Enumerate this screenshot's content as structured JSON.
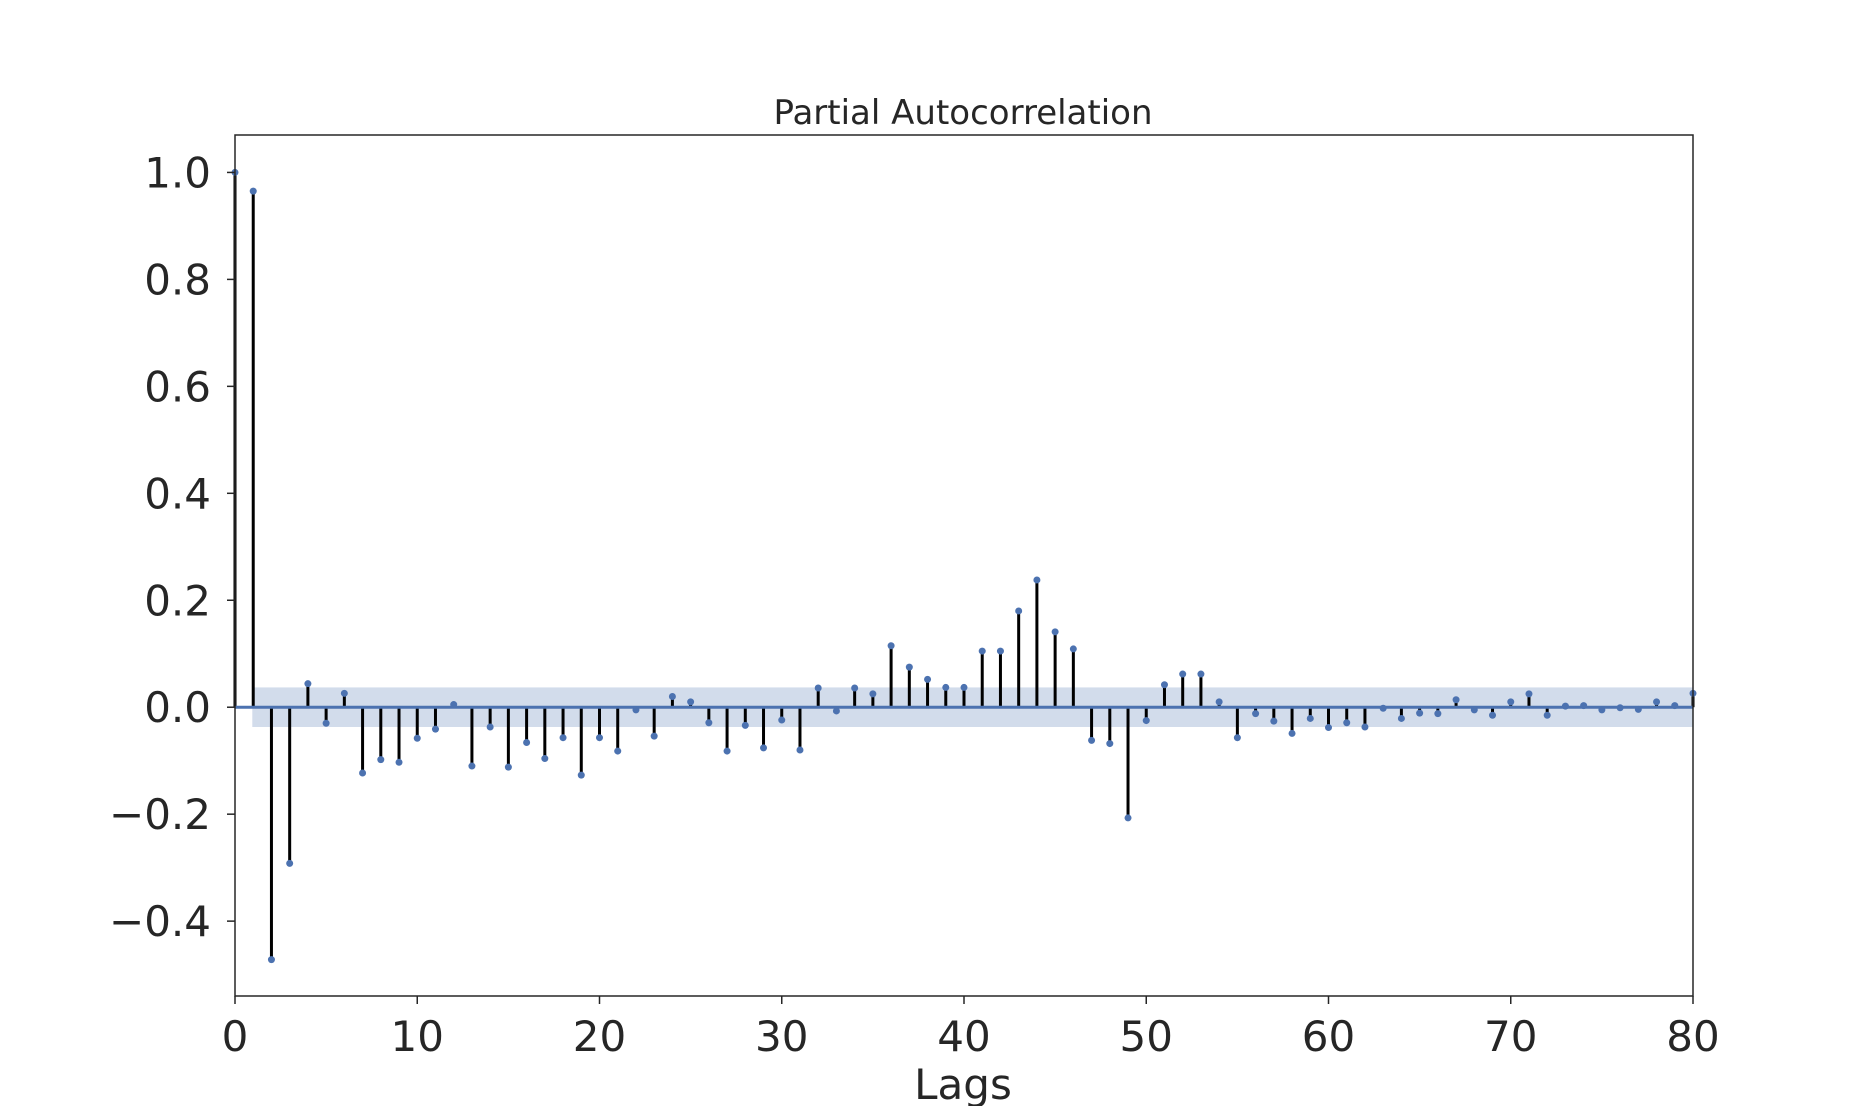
{
  "chart_data": {
    "type": "stem",
    "title": "Partial Autocorrelation",
    "xlabel": "Lags",
    "ylabel": "",
    "xlim": [
      0,
      80
    ],
    "ylim": [
      -0.54,
      1.07
    ],
    "xticks": [
      0,
      10,
      20,
      30,
      40,
      50,
      60,
      70,
      80
    ],
    "yticks": [
      -0.4,
      -0.2,
      0.0,
      0.2,
      0.4,
      0.6,
      0.8,
      1.0
    ],
    "ytick_labels": [
      "−0.4",
      "−0.2",
      "0.0",
      "0.2",
      "0.4",
      "0.6",
      "0.8",
      "1.0"
    ],
    "xtick_labels": [
      "0",
      "10",
      "20",
      "30",
      "40",
      "50",
      "60",
      "70",
      "80"
    ],
    "confidence_band": [
      -0.037,
      0.037
    ],
    "grid": false,
    "colors": {
      "stem": "#000000",
      "marker": "#4c72b0",
      "zero_line": "#4c72b0",
      "band": "#4c72b0",
      "axes": "#262626"
    },
    "lags": [
      0,
      1,
      2,
      3,
      4,
      5,
      6,
      7,
      8,
      9,
      10,
      11,
      12,
      13,
      14,
      15,
      16,
      17,
      18,
      19,
      20,
      21,
      22,
      23,
      24,
      25,
      26,
      27,
      28,
      29,
      30,
      31,
      32,
      33,
      34,
      35,
      36,
      37,
      38,
      39,
      40,
      41,
      42,
      43,
      44,
      45,
      46,
      47,
      48,
      49,
      50,
      51,
      52,
      53,
      54,
      55,
      56,
      57,
      58,
      59,
      60,
      61,
      62,
      63,
      64,
      65,
      66,
      67,
      68,
      69,
      70,
      71,
      72,
      73,
      74,
      75,
      76,
      77,
      78,
      79,
      80
    ],
    "values": [
      1.0,
      0.965,
      -0.472,
      -0.292,
      0.044,
      -0.03,
      0.026,
      -0.123,
      -0.098,
      -0.103,
      -0.058,
      -0.041,
      0.005,
      -0.11,
      -0.037,
      -0.112,
      -0.066,
      -0.096,
      -0.057,
      -0.127,
      -0.057,
      -0.082,
      -0.005,
      -0.054,
      0.02,
      0.01,
      -0.029,
      -0.082,
      -0.034,
      -0.076,
      -0.024,
      -0.08,
      0.036,
      -0.007,
      0.036,
      0.025,
      0.115,
      0.075,
      0.052,
      0.037,
      0.037,
      0.105,
      0.105,
      0.18,
      0.238,
      0.141,
      0.109,
      -0.062,
      -0.068,
      -0.207,
      -0.025,
      0.042,
      0.062,
      0.062,
      0.01,
      -0.057,
      -0.012,
      -0.026,
      -0.049,
      -0.021,
      -0.038,
      -0.029,
      -0.037,
      -0.002,
      -0.021,
      -0.011,
      -0.012,
      0.014,
      -0.005,
      -0.015,
      0.01,
      0.025,
      -0.015,
      0.002,
      0.003,
      -0.005,
      -0.001,
      -0.004,
      0.01,
      0.003,
      0.026
    ]
  }
}
